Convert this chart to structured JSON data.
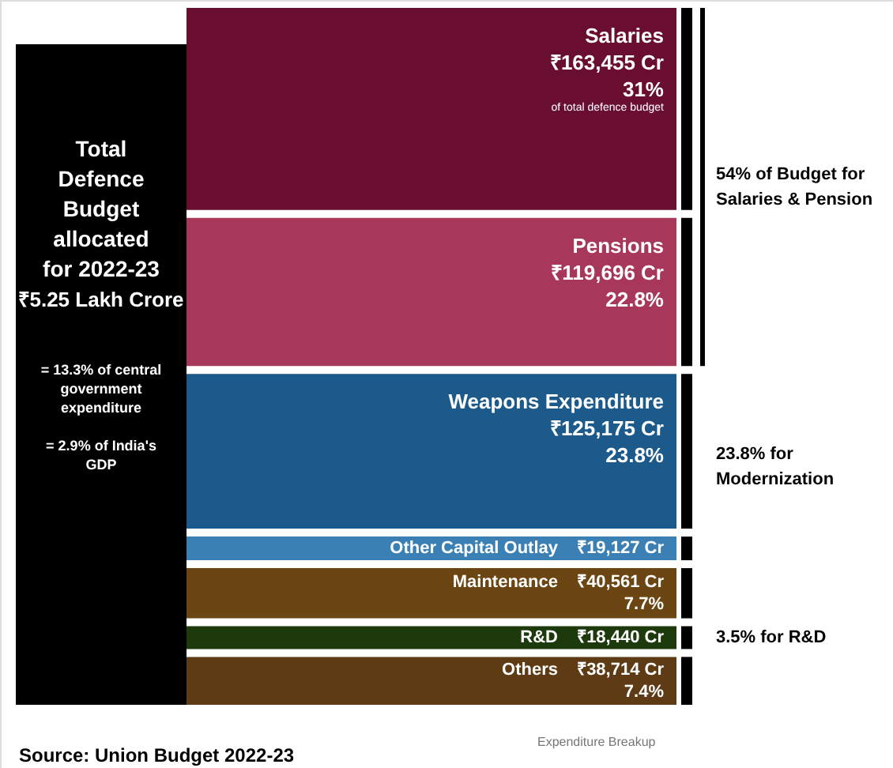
{
  "chart_data": {
    "type": "other",
    "title": "Total Defence Budget allocated for 2022-23",
    "subtitle": "₹5.25 Lakh Crore",
    "categories": [
      "Salaries",
      "Pensions",
      "Weapons Expenditure",
      "Other Capital Outlay",
      "Maintenance",
      "R&D",
      "Others"
    ],
    "values": [
      163455,
      119696,
      125175,
      19127,
      40561,
      18440,
      38714
    ],
    "value_labels": [
      "₹163,455 Cr",
      "₹119,696 Cr",
      "₹125,175 Cr",
      "₹19,127 Cr",
      "₹40,561 Cr",
      "₹18,440 Cr",
      "₹38,714 Cr"
    ],
    "colors": [
      "#6a0e30",
      "#a8385a",
      "#1d5a8c",
      "#3a80b4",
      "#6b4512",
      "#1d3a0c",
      "#5e3b14"
    ],
    "annotations": [
      "of total defence budget",
      "54% of Budget for Salaries & Pension",
      "23.8% for Modernization",
      "3.5% for R&D",
      "= 13.3% of central government expenditure",
      "= 2.9% of India's GDP",
      "Expenditure Breakup",
      "Source: Union Budget 2022-23",
      {
        "text": "31%",
        "x": "Salaries"
      },
      {
        "text": "22.8%",
        "x": "Pensions"
      },
      {
        "text": "23.8%",
        "x": "Weapons Expenditure"
      },
      {
        "text": "7.7%",
        "x": "Maintenance"
      },
      {
        "text": "7.4%",
        "x": "Others"
      }
    ]
  }
}
